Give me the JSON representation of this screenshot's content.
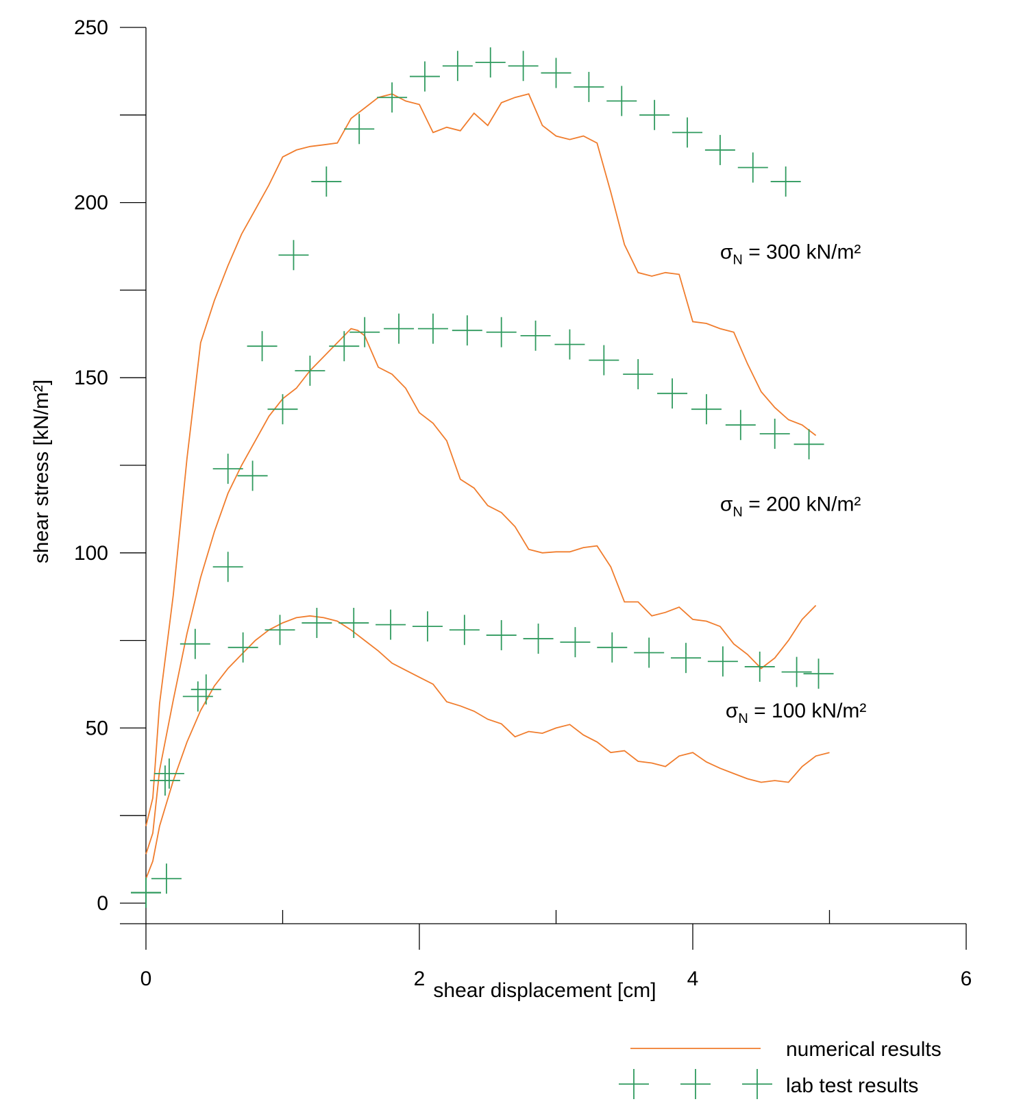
{
  "chart_data": {
    "type": "line",
    "xlabel": "shear displacement [cm]",
    "ylabel": "shear stress [kN/m²]",
    "xlim": [
      0,
      6
    ],
    "ylim": [
      0,
      250
    ],
    "xticks": [
      0,
      2,
      4,
      6
    ],
    "xminor": [
      1,
      3,
      5
    ],
    "yticks": [
      0,
      50,
      100,
      150,
      200,
      250
    ],
    "yminor": [
      25,
      75,
      125,
      175,
      225
    ],
    "grid": false,
    "legend_position": "bottom-right",
    "colors": {
      "numerical": "#f07c2c",
      "lab": "#2f9a5e"
    },
    "annotations": [
      {
        "sigma": "σ",
        "sub": "N",
        "text": " = 300 kN/m²",
        "x": 4.2,
        "y": 184
      },
      {
        "sigma": "σ",
        "sub": "N",
        "text": " = 200 kN/m²",
        "x": 4.2,
        "y": 112
      },
      {
        "sigma": "σ",
        "sub": "N",
        "text": " = 100 kN/m²",
        "x": 4.24,
        "y": 53
      }
    ],
    "legend": [
      {
        "label": "numerical results",
        "style": "line"
      },
      {
        "label": "lab test results",
        "style": "marker"
      }
    ],
    "series": [
      {
        "style": "line",
        "group": "σN = 100 kN/m²",
        "x": [
          0,
          0.05,
          0.1,
          0.2,
          0.3,
          0.4,
          0.5,
          0.6,
          0.7,
          0.8,
          0.9,
          1.0,
          1.1,
          1.2,
          1.3,
          1.4,
          1.5,
          1.6,
          1.7,
          1.8,
          1.9,
          2.0,
          2.1,
          2.2,
          2.3,
          2.4,
          2.5,
          2.6,
          2.7,
          2.8,
          2.9,
          3.0,
          3.1,
          3.2,
          3.3,
          3.4,
          3.5,
          3.6,
          3.7,
          3.8,
          3.9,
          4.0,
          4.1,
          4.2,
          4.3,
          4.4,
          4.5,
          4.6,
          4.7,
          4.8,
          4.9,
          5.0
        ],
        "y": [
          7,
          12,
          22,
          35,
          46,
          55,
          62,
          67,
          71,
          75,
          78,
          80,
          81.5,
          82,
          81.5,
          80.5,
          78,
          75,
          72,
          68.5,
          66.5,
          64.5,
          62.5,
          57.5,
          56.3,
          54.8,
          52.5,
          51.2,
          47.5,
          49,
          48.5,
          50,
          51,
          48,
          46,
          43,
          43.5,
          40.5,
          40,
          39,
          42,
          43,
          40.3,
          38.5,
          37,
          35.5,
          34.5,
          35,
          34.5,
          39,
          42,
          43
        ]
      },
      {
        "style": "line",
        "group": "σN = 200 kN/m²",
        "x": [
          0,
          0.05,
          0.1,
          0.2,
          0.3,
          0.4,
          0.5,
          0.6,
          0.7,
          0.8,
          0.9,
          1.0,
          1.1,
          1.2,
          1.3,
          1.4,
          1.5,
          1.55,
          1.6,
          1.7,
          1.8,
          1.9,
          2.0,
          2.1,
          2.2,
          2.3,
          2.4,
          2.5,
          2.6,
          2.7,
          2.8,
          2.9,
          3.0,
          3.1,
          3.2,
          3.3,
          3.4,
          3.5,
          3.6,
          3.7,
          3.8,
          3.9,
          4.0,
          4.1,
          4.2,
          4.3,
          4.4,
          4.5,
          4.6,
          4.7,
          4.8,
          4.9
        ],
        "y": [
          14,
          20,
          38,
          58,
          77,
          93,
          106,
          117,
          125,
          132,
          139,
          144,
          147,
          152,
          156,
          160,
          164,
          163.5,
          162,
          153,
          151,
          147,
          140,
          137,
          132,
          121,
          118.5,
          113.5,
          111.5,
          107.5,
          101,
          100,
          100.3,
          100.3,
          101.5,
          102,
          96,
          86,
          86,
          82,
          83,
          84.5,
          81,
          80.5,
          79,
          74,
          71,
          67,
          70,
          75,
          81,
          85
        ]
      },
      {
        "style": "line",
        "group": "σN = 300 kN/m²",
        "x": [
          0,
          0.05,
          0.1,
          0.2,
          0.3,
          0.4,
          0.5,
          0.6,
          0.7,
          0.8,
          0.9,
          1.0,
          1.1,
          1.2,
          1.3,
          1.4,
          1.5,
          1.6,
          1.7,
          1.8,
          1.9,
          2.0,
          2.1,
          2.2,
          2.3,
          2.4,
          2.5,
          2.6,
          2.7,
          2.8,
          2.9,
          3.0,
          3.1,
          3.2,
          3.3,
          3.4,
          3.5,
          3.6,
          3.7,
          3.8,
          3.9,
          4.0,
          4.1,
          4.2,
          4.3,
          4.4,
          4.5,
          4.6,
          4.7,
          4.8,
          4.9
        ],
        "y": [
          22,
          30,
          57,
          88,
          127,
          160,
          172,
          182,
          191,
          198,
          205,
          213,
          215,
          216,
          216.5,
          217,
          224,
          227,
          230,
          231,
          229,
          228,
          220,
          221.5,
          220.5,
          225.5,
          222,
          228.5,
          230,
          231,
          222,
          219,
          218,
          219,
          217,
          203,
          188,
          180,
          179,
          180,
          179.5,
          166,
          165.5,
          164,
          163,
          154,
          146,
          141.5,
          138,
          136.5,
          133.5
        ]
      },
      {
        "style": "marker",
        "group": "σN = 100 kN/m²",
        "x": [
          0,
          0.14,
          0.36,
          0.44,
          0.71,
          0.98,
          1.25,
          1.52,
          1.79,
          2.06,
          2.33,
          2.6,
          2.87,
          3.14,
          3.41,
          3.68,
          3.95,
          4.22,
          4.49,
          4.76,
          4.92
        ],
        "y": [
          3,
          35,
          74,
          61,
          73,
          78,
          80,
          80,
          79.5,
          79,
          78,
          76.5,
          75.5,
          74.5,
          73,
          71.5,
          70,
          69,
          67.5,
          66,
          65.5
        ]
      },
      {
        "style": "marker",
        "group": "σN = 200 kN/m²",
        "x": [
          0,
          0.15,
          0.38,
          0.6,
          0.6,
          0.78,
          0.85,
          1.0,
          1.2,
          1.45,
          1.6,
          1.85,
          2.1,
          2.35,
          2.6,
          2.85,
          3.1,
          3.35,
          3.6,
          3.85,
          4.1,
          4.35,
          4.6,
          4.85
        ],
        "y": [
          3,
          7,
          59,
          96,
          124,
          122,
          159,
          141,
          152,
          159,
          163,
          164,
          164,
          163.5,
          163,
          162,
          159.5,
          155,
          151,
          145.5,
          141,
          136.5,
          134,
          131
        ]
      },
      {
        "style": "marker",
        "group": "σN = 300 kN/m²",
        "x": [
          0,
          0.17,
          1.08,
          1.32,
          1.56,
          1.8,
          2.04,
          2.28,
          2.52,
          2.76,
          3.0,
          3.24,
          3.48,
          3.72,
          3.96,
          4.2,
          4.44,
          4.68
        ],
        "y": [
          3,
          37,
          185,
          206,
          221,
          230,
          236,
          239,
          240,
          239,
          237,
          233,
          229,
          225,
          220,
          215,
          210,
          206
        ]
      }
    ]
  }
}
